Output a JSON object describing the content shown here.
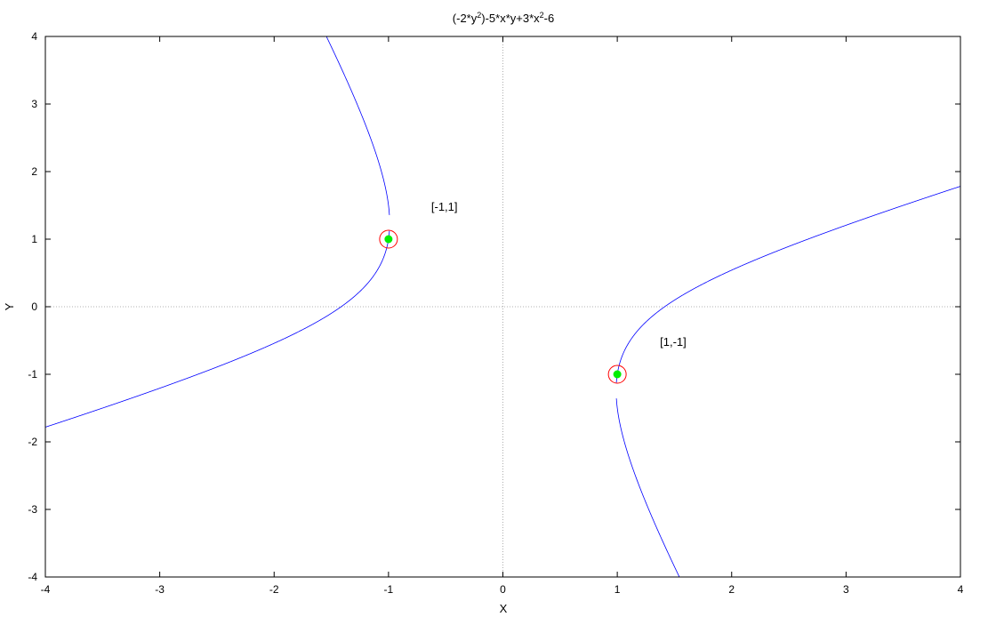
{
  "chart_data": {
    "type": "scatter",
    "title": {
      "base": "(-2*y",
      "sup1": "2",
      "mid": ")-5*x*y+3*x",
      "sup2": "2",
      "end": "-6"
    },
    "xlabel": "X",
    "ylabel": "Y",
    "xlim": [
      -4,
      4
    ],
    "ylim": [
      -4,
      4
    ],
    "xticks": [
      -4,
      -3,
      -2,
      -1,
      0,
      1,
      2,
      3,
      4
    ],
    "yticks": [
      -4,
      -3,
      -2,
      -1,
      0,
      1,
      2,
      3,
      4
    ],
    "zero_lines": true,
    "curve": {
      "equation": "-2*y^2 - 5*x*y + 3*x^2 - 6 = 0",
      "coefficients": {
        "yy": -2,
        "xy": -5,
        "xx": 3,
        "c": -6
      },
      "color": "#0000ff"
    },
    "points": [
      {
        "x": -1,
        "y": 1,
        "label": "[-1,1]"
      },
      {
        "x": 1,
        "y": -1,
        "label": "[1,-1]"
      }
    ],
    "marker_color": "#00ee00",
    "circle_color": "#ff0000"
  }
}
